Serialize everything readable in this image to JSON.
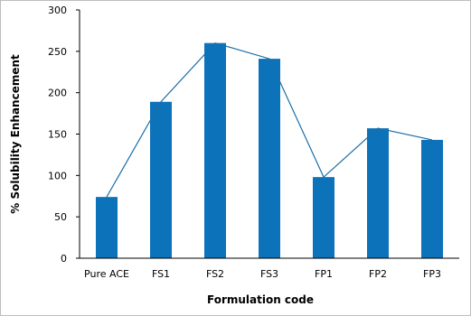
{
  "chart_data": {
    "type": "bar",
    "categories": [
      "Pure ACE",
      "FS1",
      "FS2",
      "FS3",
      "FP1",
      "FP2",
      "FP3"
    ],
    "series": [
      {
        "values": [
          74,
          189,
          260,
          241,
          98,
          157,
          143
        ]
      }
    ],
    "overlay": "line",
    "xlabel": "Formulation code",
    "ylabel": "% Solubility Enhancement",
    "ylim": [
      0,
      300
    ],
    "yticks": [
      0,
      50,
      100,
      150,
      200,
      250,
      300
    ],
    "grid": false,
    "legend": "none",
    "colors": {
      "bar": "#0C72BA",
      "line": "#1B6FA8",
      "axis": "#000000"
    }
  }
}
